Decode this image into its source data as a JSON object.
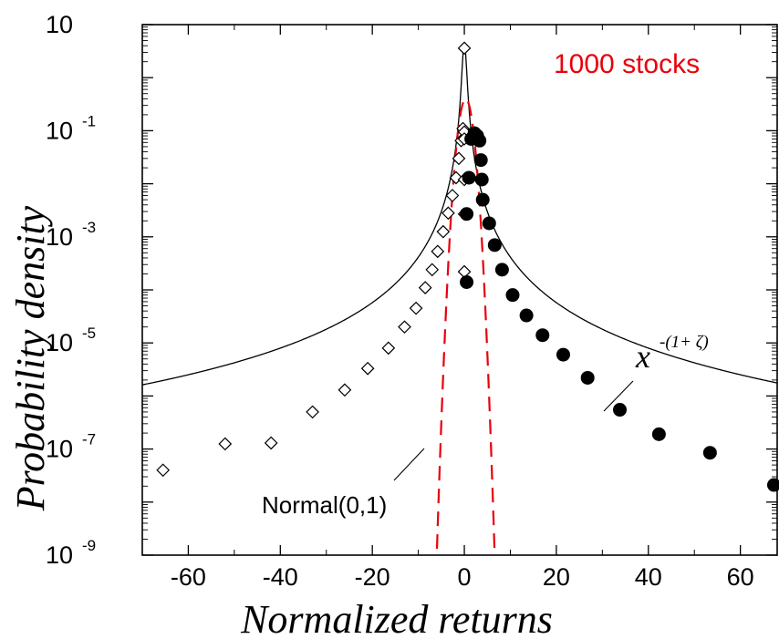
{
  "chart_data": {
    "type": "scatter",
    "title": "",
    "xlabel": "Normalized returns",
    "ylabel": "Probability density",
    "xlim": [
      -70,
      68
    ],
    "ylim_log10": [
      -9,
      1
    ],
    "y_scale": "log",
    "x_ticks": [
      -60,
      -40,
      -20,
      0,
      20,
      40,
      60
    ],
    "x_tick_labels": [
      "-60",
      "-40",
      "-20",
      "0",
      "20",
      "40",
      "60"
    ],
    "y_ticks_log10": [
      1,
      -1,
      -3,
      -5,
      -7,
      -9
    ],
    "y_tick_labels": [
      {
        "base": "10",
        "exp": ""
      },
      {
        "base": "10",
        "exp": "-1"
      },
      {
        "base": "10",
        "exp": "-3"
      },
      {
        "base": "10",
        "exp": "-5"
      },
      {
        "base": "10",
        "exp": "-7"
      },
      {
        "base": "10",
        "exp": "-9"
      }
    ],
    "annotation": "1000 stocks",
    "annotation_color": "#e8000b",
    "normal_label": "Normal(0,1)",
    "powerlaw_label_base": "x",
    "powerlaw_label_exp": "-(1+ ζ)",
    "series": [
      {
        "marker": "open-diamond",
        "points": [
          [
            -65.5,
            4e-08
          ],
          [
            -52,
            1.25e-07
          ],
          [
            -42,
            1.3e-07
          ],
          [
            -33,
            5e-07
          ],
          [
            -26,
            1.3e-06
          ],
          [
            -21,
            3.3e-06
          ],
          [
            -16.5,
            8e-06
          ],
          [
            -13,
            2e-05
          ],
          [
            -10.5,
            4.5e-05
          ],
          [
            -8.5,
            0.00011
          ],
          [
            -7,
            0.00024
          ],
          [
            -5.8,
            0.00053
          ],
          [
            -4.6,
            0.00125
          ],
          [
            -3.5,
            0.0028
          ],
          [
            -2.6,
            0.006
          ],
          [
            -1.8,
            0.013
          ],
          [
            -1.2,
            0.03
          ],
          [
            -0.7,
            0.065
          ],
          [
            -0.3,
            0.11
          ],
          [
            0,
            0.095
          ],
          [
            0,
            0.07
          ],
          [
            0,
            0.012
          ],
          [
            0,
            0.0027
          ],
          [
            0,
            0.00022
          ],
          [
            0,
            3.6
          ]
        ]
      },
      {
        "marker": "filled-circle",
        "points": [
          [
            0.5,
            0.0027
          ],
          [
            0.5,
            0.00014
          ],
          [
            1,
            0.013
          ],
          [
            1.5,
            0.07
          ],
          [
            2.2,
            0.09
          ],
          [
            2.8,
            0.08
          ],
          [
            3.3,
            0.065
          ],
          [
            3.6,
            0.028
          ],
          [
            3.8,
            0.012
          ],
          [
            4.0,
            0.005
          ],
          [
            5.4,
            0.0018
          ],
          [
            6.6,
            0.0007
          ],
          [
            8.2,
            0.00024
          ],
          [
            10.5,
            8e-05
          ],
          [
            13.5,
            3.3e-05
          ],
          [
            17,
            1.4e-05
          ],
          [
            21.5,
            6e-06
          ],
          [
            26.8,
            2.2e-06
          ],
          [
            33.8,
            5.5e-07
          ],
          [
            42.3,
            1.9e-07
          ],
          [
            53.4,
            8.5e-08
          ],
          [
            67.3,
            2.1e-08
          ]
        ]
      }
    ],
    "line_series": [
      {
        "style": "solid",
        "color": "#000000"
      },
      {
        "style": "dashed",
        "color": "#e8000b"
      }
    ],
    "grid": false
  }
}
